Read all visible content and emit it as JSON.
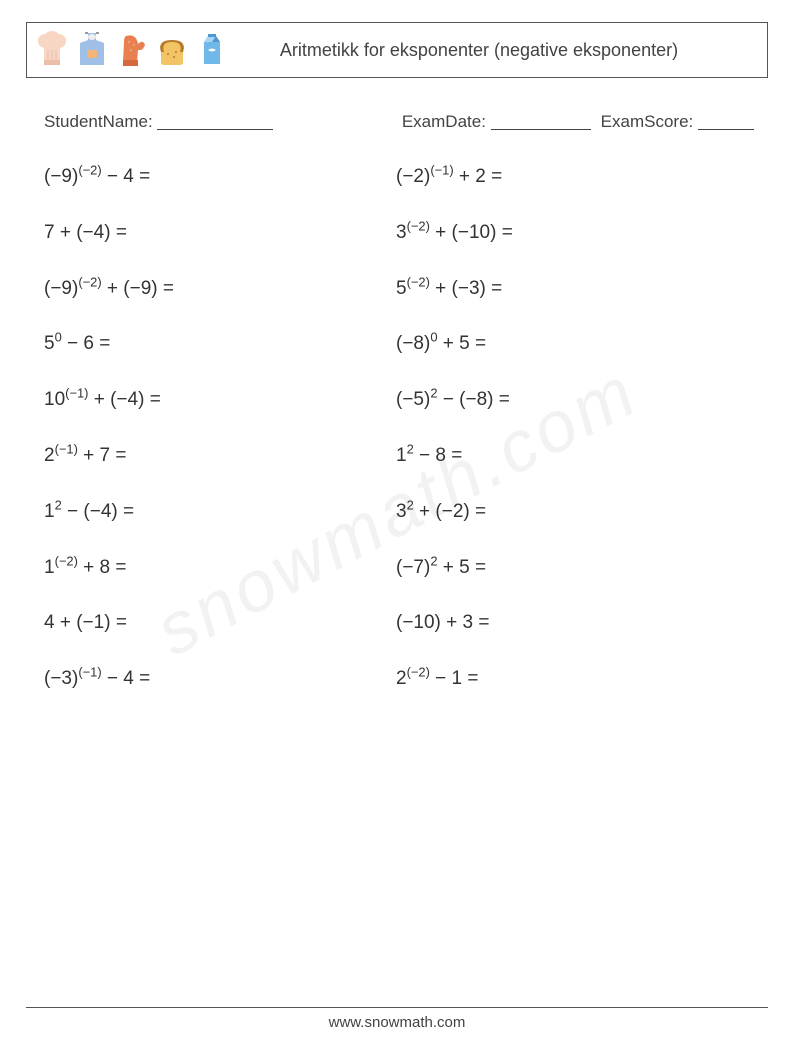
{
  "header": {
    "title": "Aritmetikk for eksponenter (negative eksponenter)",
    "icons": [
      "chef-hat-icon",
      "apron-icon",
      "oven-mitt-icon",
      "bread-icon",
      "milk-carton-icon"
    ],
    "icon_colors": {
      "chef_hat": "#f7d6c4",
      "apron_body": "#9fbfe6",
      "apron_pocket": "#f5b478",
      "mitt": "#e98050",
      "bread": "#f2c463",
      "bread_crust": "#b57b2f",
      "milk": "#6fb8e8",
      "milk_top": "#4f97cf"
    }
  },
  "meta": {
    "student_label": "StudentName:",
    "date_label": "ExamDate:",
    "score_label": "ExamScore:",
    "student_line_w": 116,
    "date_line_w": 100,
    "score_line_w": 56
  },
  "watermark": "snowmath.com",
  "footer": "www.snowmath.com",
  "problems_left": [
    {
      "base": "(−9)",
      "exp": "(−2)",
      "op": " − ",
      "rhs": "4",
      "after": " ="
    },
    {
      "base": "7",
      "exp": "",
      "op": " + ",
      "rhs": "(−4)",
      "after": " ="
    },
    {
      "base": "(−9)",
      "exp": "(−2)",
      "op": " + ",
      "rhs": "(−9)",
      "after": " ="
    },
    {
      "base": "5",
      "exp": "0",
      "op": " − ",
      "rhs": "6",
      "after": " ="
    },
    {
      "base": "10",
      "exp": "(−1)",
      "op": " + ",
      "rhs": "(−4)",
      "after": " ="
    },
    {
      "base": "2",
      "exp": "(−1)",
      "op": " + ",
      "rhs": "7",
      "after": " ="
    },
    {
      "base": "1",
      "exp": "2",
      "op": " − ",
      "rhs": "(−4)",
      "after": " ="
    },
    {
      "base": "1",
      "exp": "(−2)",
      "op": " + ",
      "rhs": "8",
      "after": " ="
    },
    {
      "base": "4",
      "exp": "",
      "op": " + ",
      "rhs": "(−1)",
      "after": " ="
    },
    {
      "base": "(−3)",
      "exp": "(−1)",
      "op": " − ",
      "rhs": "4",
      "after": " ="
    }
  ],
  "problems_right": [
    {
      "base": "(−2)",
      "exp": "(−1)",
      "op": " + ",
      "rhs": "2",
      "after": " ="
    },
    {
      "base": "3",
      "exp": "(−2)",
      "op": " + ",
      "rhs": "(−10)",
      "after": " ="
    },
    {
      "base": "5",
      "exp": "(−2)",
      "op": " + ",
      "rhs": "(−3)",
      "after": " ="
    },
    {
      "base": "(−8)",
      "exp": "0",
      "op": " + ",
      "rhs": "5",
      "after": " ="
    },
    {
      "base": "(−5)",
      "exp": "2",
      "op": " − ",
      "rhs": "(−8)",
      "after": " ="
    },
    {
      "base": "1",
      "exp": "2",
      "op": " − ",
      "rhs": "8",
      "after": " ="
    },
    {
      "base": "3",
      "exp": "2",
      "op": " + ",
      "rhs": "(−2)",
      "after": " ="
    },
    {
      "base": "(−7)",
      "exp": "2",
      "op": " + ",
      "rhs": "5",
      "after": " ="
    },
    {
      "base": "(−10)",
      "exp": "",
      "op": " + ",
      "rhs": "3",
      "after": " ="
    },
    {
      "base": "2",
      "exp": "(−2)",
      "op": " − ",
      "rhs": "1",
      "after": " ="
    }
  ]
}
